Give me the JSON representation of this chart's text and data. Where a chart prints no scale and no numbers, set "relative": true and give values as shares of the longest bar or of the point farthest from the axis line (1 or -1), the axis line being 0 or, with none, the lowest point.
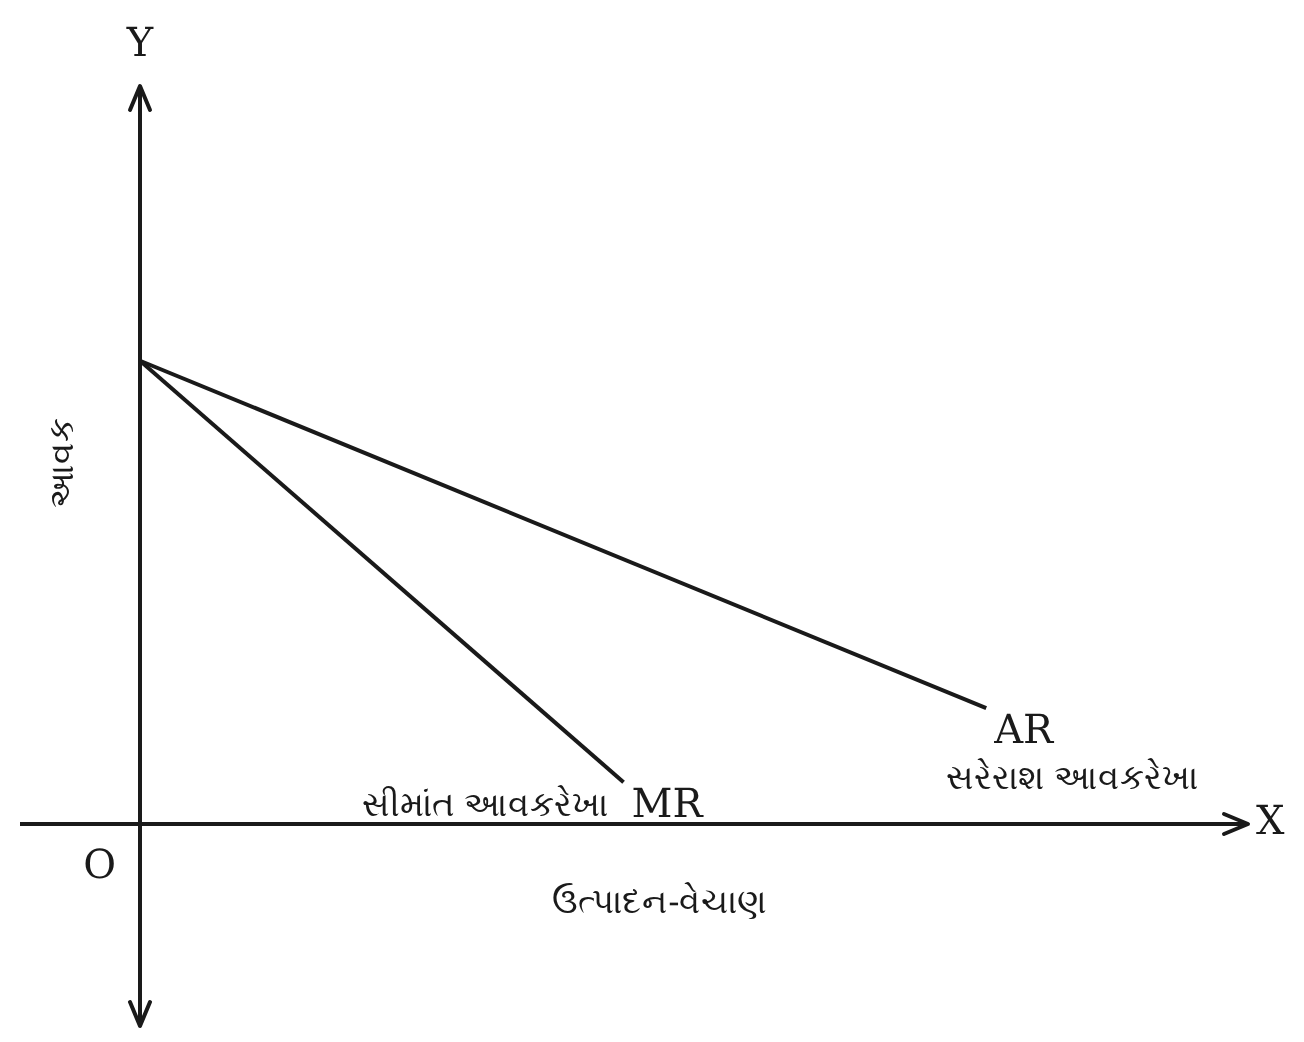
{
  "chart_data": {
    "type": "line",
    "relative": true,
    "xlabel": "ઉત્પાદન-વેચાણ",
    "ylabel": "આવક",
    "categories": [
      null,
      null,
      null,
      null,
      null,
      null,
      null,
      null,
      null,
      null
    ],
    "series": [
      {
        "name": "MR",
        "color": "#1a1a1a",
        "values": [
          1,
          null,
          null,
          null,
          0.09,
          null,
          null,
          null,
          null,
          null
        ]
      },
      {
        "name": "AR",
        "color": "#1a1a1a",
        "values": [
          1,
          null,
          null,
          null,
          null,
          null,
          null,
          0.25,
          null,
          null
        ]
      }
    ],
    "annotations": [
      "સીમાંત આવકરેખા",
      "સરેરાશ આવકરેખા",
      "X",
      "Y",
      "O"
    ],
    "legend": false,
    "marker": "none",
    "line_style": "solid"
  }
}
